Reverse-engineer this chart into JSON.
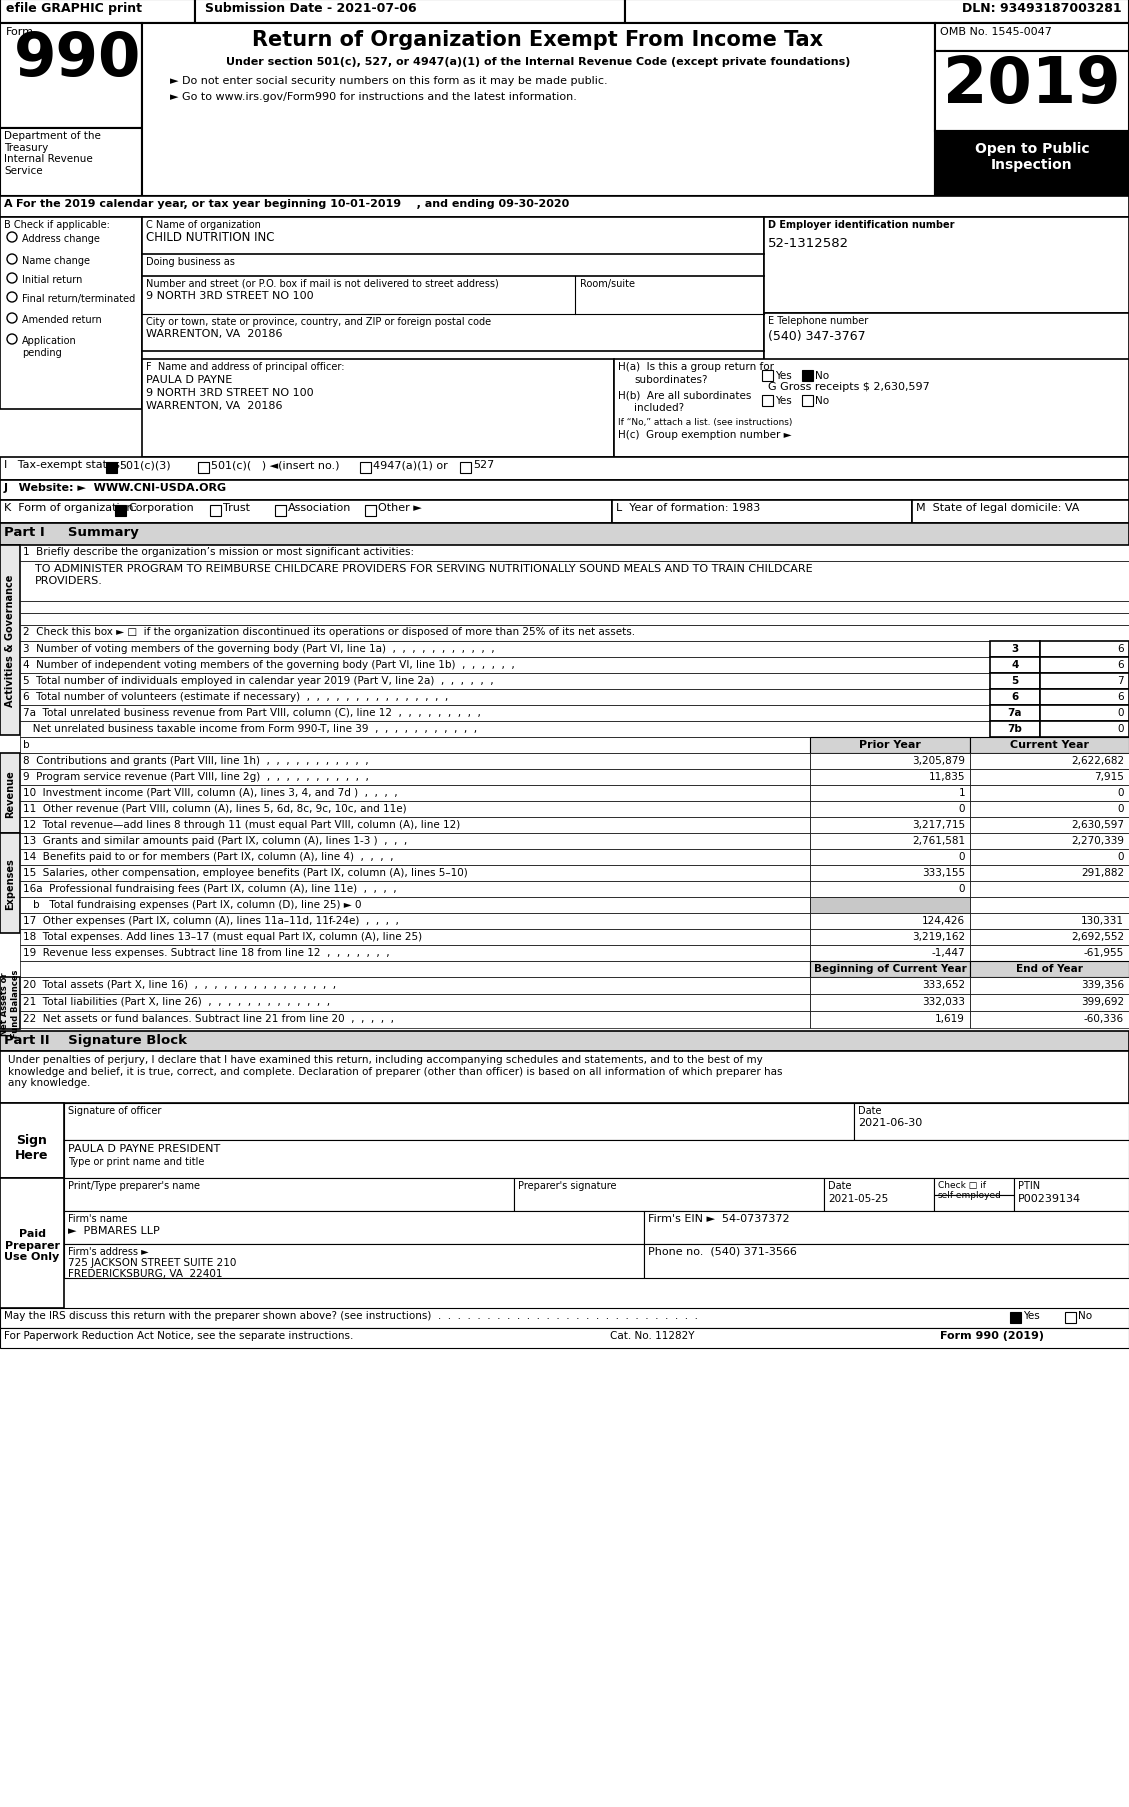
{
  "page_width": 11.29,
  "page_height": 18.08,
  "bg_color": "#ffffff",
  "header": {
    "efile_text": "efile GRAPHIC print",
    "submission_text": "Submission Date - 2021-07-06",
    "dln_text": "DLN: 93493187003281",
    "form_number": "990",
    "title_line1": "Return of Organization Exempt From Income Tax",
    "title_line2": "Under section 501(c), 527, or 4947(a)(1) of the Internal Revenue Code (except private foundations)",
    "title_line3": "► Do not enter social security numbers on this form as it may be made public.",
    "title_line4": "► Go to www.irs.gov/Form990 for instructions and the latest information.",
    "dept_text": "Department of the\nTreasury\nInternal Revenue\nService",
    "omb_text": "OMB No. 1545-0047",
    "year_text": "2019",
    "open_text": "Open to Public\nInspection"
  },
  "section_a": {
    "text": "For the 2019 calendar year, or tax year beginning 10-01-2019    , and ending 09-30-2020"
  },
  "section_b": {
    "items": [
      "Address change",
      "Name change",
      "Initial return",
      "Final return/terminated",
      "Amended return",
      "Application\npending"
    ]
  },
  "section_c": {
    "name_label": "C Name of organization",
    "name": "CHILD NUTRITION INC",
    "dba_label": "Doing business as",
    "street_label": "Number and street (or P.O. box if mail is not delivered to street address)",
    "street": "9 NORTH 3RD STREET NO 100",
    "room_label": "Room/suite",
    "city_label": "City or town, state or province, country, and ZIP or foreign postal code",
    "city": "WARRENTON, VA  20186"
  },
  "section_d": {
    "text": "D Employer identification number",
    "ein": "52-1312582"
  },
  "section_e": {
    "text": "E Telephone number",
    "phone": "(540) 347-3767"
  },
  "section_f": {
    "text": "F  Name and address of principal officer:",
    "name": "PAULA D PAYNE",
    "street": "9 NORTH 3RD STREET NO 100",
    "city": "WARRENTON, VA  20186"
  },
  "section_g": {
    "text": "G Gross receipts $ 2,630,597"
  },
  "section_h": {
    "ha_line1": "H(a)  Is this a group return for",
    "ha_line2": "subordinates?",
    "hb_line1": "H(b)  Are all subordinates",
    "hb_line2": "included?",
    "hb_note": "If “No,” attach a list. (see instructions)",
    "hc_text": "H(c)  Group exemption number ►"
  },
  "section_i": {
    "text": "I   Tax-exempt status:"
  },
  "section_j": {
    "text": "J   Website: ►  WWW.CNI-USDA.ORG"
  },
  "section_k": {
    "text": "K  Form of organization:"
  },
  "section_l": {
    "text": "L  Year of formation: 1983"
  },
  "section_m": {
    "text": "M  State of legal domicile: VA"
  },
  "part1": {
    "title": "Part I     Summary",
    "line1_text": "1  Briefly describe the organization’s mission or most significant activities:",
    "line1_value": "TO ADMINISTER PROGRAM TO REIMBURSE CHILDCARE PROVIDERS FOR SERVING NUTRITIONALLY SOUND MEALS AND TO TRAIN CHILDCARE\nPROVIDERS.",
    "line2_text": "2  Check this box ► □  if the organization discontinued its operations or disposed of more than 25% of its net assets.",
    "lines_3_7": [
      [
        "3",
        "Number of voting members of the governing body (Part VI, line 1a)  ,  ,  ,  ,  ,  ,  ,  ,  ,  ,  ,",
        "3",
        "6"
      ],
      [
        "4",
        "Number of independent voting members of the governing body (Part VI, line 1b)  ,  ,  ,  ,  ,  ,",
        "4",
        "6"
      ],
      [
        "5",
        "Total number of individuals employed in calendar year 2019 (Part V, line 2a)  ,  ,  ,  ,  ,  ,",
        "5",
        "7"
      ],
      [
        "6",
        "Total number of volunteers (estimate if necessary)  ,  ,  ,  ,  ,  ,  ,  ,  ,  ,  ,  ,  ,  ,  ,",
        "6",
        "6"
      ],
      [
        "7a",
        "Total unrelated business revenue from Part VIII, column (C), line 12  ,  ,  ,  ,  ,  ,  ,  ,  ,",
        "7a",
        "0"
      ],
      [
        "",
        "Net unrelated business taxable income from Form 990-T, line 39  ,  ,  ,  ,  ,  ,  ,  ,  ,  ,  ,",
        "7b",
        "0"
      ]
    ],
    "col_prior": "Prior Year",
    "col_current": "Current Year",
    "revenue_lines": [
      [
        "8",
        "Contributions and grants (Part VIII, line 1h)  ,  ,  ,  ,  ,  ,  ,  ,  ,  ,  ,",
        "3,205,879",
        "2,622,682"
      ],
      [
        "9",
        "Program service revenue (Part VIII, line 2g)  ,  ,  ,  ,  ,  ,  ,  ,  ,  ,  ,",
        "11,835",
        "7,915"
      ],
      [
        "10",
        "Investment income (Part VIII, column (A), lines 3, 4, and 7d )  ,  ,  ,  ,",
        "1",
        "0"
      ],
      [
        "11",
        "Other revenue (Part VIII, column (A), lines 5, 6d, 8c, 9c, 10c, and 11e)",
        "0",
        "0"
      ],
      [
        "12",
        "Total revenue—add lines 8 through 11 (must equal Part VIII, column (A), line 12)",
        "3,217,715",
        "2,630,597"
      ]
    ],
    "expense_lines": [
      [
        "13",
        "Grants and similar amounts paid (Part IX, column (A), lines 1-3 )  ,  ,  ,",
        "2,761,581",
        "2,270,339"
      ],
      [
        "14",
        "Benefits paid to or for members (Part IX, column (A), line 4)  ,  ,  ,  ,",
        "0",
        "0"
      ],
      [
        "15",
        "Salaries, other compensation, employee benefits (Part IX, column (A), lines 5–10)",
        "333,155",
        "291,882"
      ],
      [
        "16a",
        "Professional fundraising fees (Part IX, column (A), line 11e)  ,  ,  ,  ,",
        "0",
        ""
      ]
    ],
    "line16b_text": "b   Total fundraising expenses (Part IX, column (D), line 25) ► 0",
    "more_expense_lines": [
      [
        "17",
        "Other expenses (Part IX, column (A), lines 11a–11d, 11f-24e)  ,  ,  ,  ,",
        "124,426",
        "130,331"
      ],
      [
        "18",
        "Total expenses. Add lines 13–17 (must equal Part IX, column (A), line 25)",
        "3,219,162",
        "2,692,552"
      ],
      [
        "19",
        "Revenue less expenses. Subtract line 18 from line 12  ,  ,  ,  ,  ,  ,  ,",
        "-1,447",
        "-61,955"
      ]
    ],
    "col_begin": "Beginning of Current Year",
    "col_end": "End of Year",
    "net_lines": [
      [
        "20",
        "Total assets (Part X, line 16)  ,  ,  ,  ,  ,  ,  ,  ,  ,  ,  ,  ,  ,  ,  ,",
        "333,652",
        "339,356"
      ],
      [
        "21",
        "Total liabilities (Part X, line 26)  ,  ,  ,  ,  ,  ,  ,  ,  ,  ,  ,  ,  ,",
        "332,033",
        "399,692"
      ],
      [
        "22",
        "Net assets or fund balances. Subtract line 21 from line 20  ,  ,  ,  ,  ,",
        "1,619",
        "-60,336"
      ]
    ]
  },
  "part2": {
    "title": "Part II    Signature Block",
    "declaration": "Under penalties of perjury, I declare that I have examined this return, including accompanying schedules and statements, and to the best of my\nknowledge and belief, it is true, correct, and complete. Declaration of preparer (other than officer) is based on all information of which preparer has\nany knowledge.",
    "signature_label": "Signature of officer",
    "date_label": "Date",
    "date_value": "2021-06-30",
    "name_title": "PAULA D PAYNE PRESIDENT",
    "name_title_label": "Type or print name and title"
  },
  "preparer": {
    "title": "Paid\nPreparer\nUse Only",
    "print_name_label": "Print/Type preparer's name",
    "signature_label": "Preparer's signature",
    "date_label": "Date",
    "date_value": "2021-05-25",
    "check_label": "Check □ if\nself-employed",
    "ptin_label": "PTIN",
    "ptin": "P00239134",
    "firm_name_label": "Firm's name",
    "firm_name": "►  PBMARES LLP",
    "firm_ein_label": "Firm's EIN ►",
    "firm_ein": "54-0737372",
    "firm_address_label": "Firm's address ►",
    "firm_address": "725 JACKSON STREET SUITE 210",
    "firm_city": "FREDERICKSBURG, VA  22401",
    "phone_label": "Phone no.",
    "phone": "(540) 371-3566"
  },
  "footer": {
    "discuss_text": "May the IRS discuss this return with the preparer shown above? (see instructions)  .  .  .  .  .  .  .  .  .  .  .  .  .  .  .  .  .  .  .  .  .  .  .  .  .  .  .",
    "paperwork_text": "For Paperwork Reduction Act Notice, see the separate instructions.",
    "cat_text": "Cat. No. 11282Y",
    "form_text": "Form 990 (2019)"
  },
  "side_labels": {
    "activities": "Activities & Governance",
    "revenue": "Revenue",
    "expenses": "Expenses",
    "net_assets": "Net Assets or\nFund Balances"
  }
}
